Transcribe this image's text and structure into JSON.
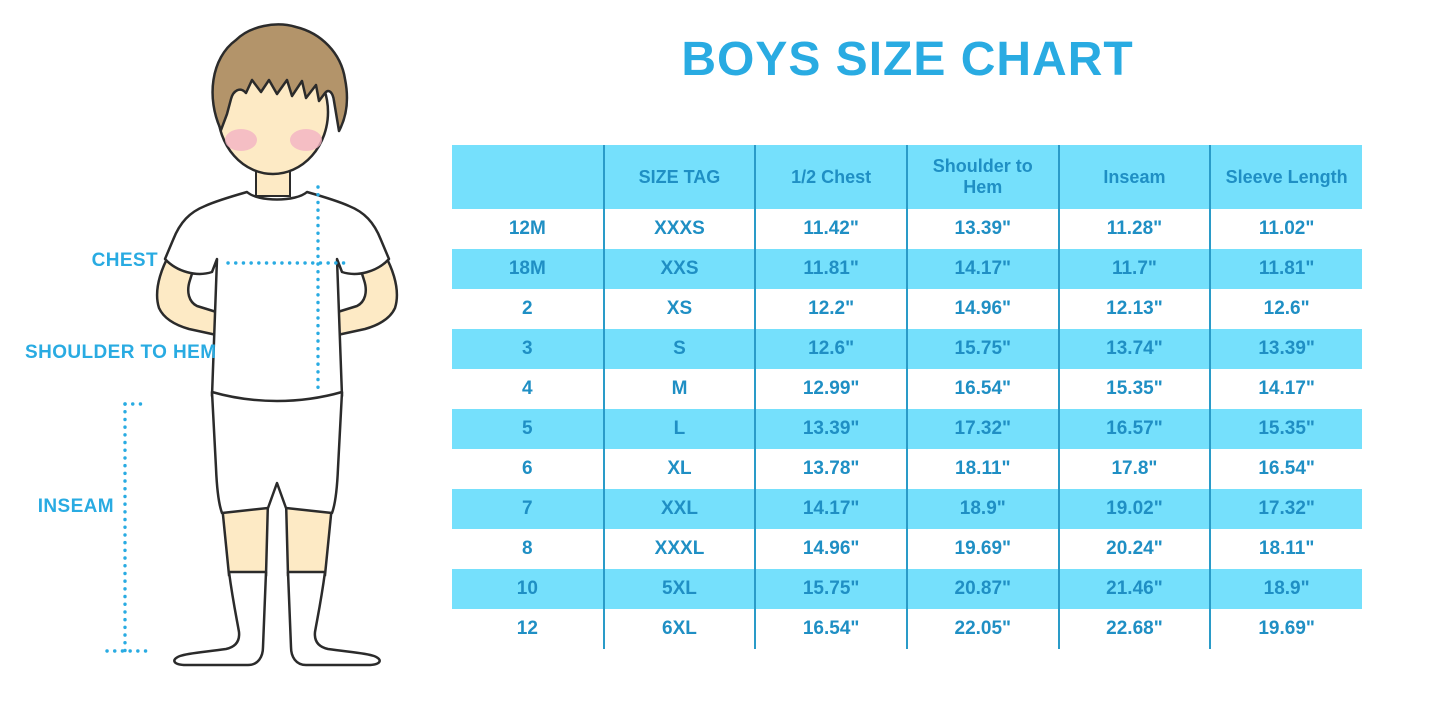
{
  "page": {
    "title": "BOYS SIZE CHART"
  },
  "figure": {
    "chest_label": "CHEST",
    "shoulder_label": "SHOULDER TO HEM",
    "inseam_label": "INSEAM"
  },
  "chart_data": {
    "type": "table",
    "title": "BOYS SIZE CHART",
    "columns": [
      "",
      "SIZE TAG",
      "1/2 Chest",
      "Shoulder to Hem",
      "Inseam",
      "Sleeve Length"
    ],
    "rows": [
      [
        "12M",
        "XXXS",
        "11.42\"",
        "13.39\"",
        "11.28\"",
        "11.02\""
      ],
      [
        "18M",
        "XXS",
        "11.81\"",
        "14.17\"",
        "11.7\"",
        "11.81\""
      ],
      [
        "2",
        "XS",
        "12.2\"",
        "14.96\"",
        "12.13\"",
        "12.6\""
      ],
      [
        "3",
        "S",
        "12.6\"",
        "15.75\"",
        "13.74\"",
        "13.39\""
      ],
      [
        "4",
        "M",
        "12.99\"",
        "16.54\"",
        "15.35\"",
        "14.17\""
      ],
      [
        "5",
        "L",
        "13.39\"",
        "17.32\"",
        "16.57\"",
        "15.35\""
      ],
      [
        "6",
        "XL",
        "13.78\"",
        "18.11\"",
        "17.8\"",
        "16.54\""
      ],
      [
        "7",
        "XXL",
        "14.17\"",
        "18.9\"",
        "19.02\"",
        "17.32\""
      ],
      [
        "8",
        "XXXL",
        "14.96\"",
        "19.69\"",
        "20.24\"",
        "18.11\""
      ],
      [
        "10",
        "5XL",
        "15.75\"",
        "20.87\"",
        "21.46\"",
        "18.9\""
      ],
      [
        "12",
        "6XL",
        "16.54\"",
        "22.05\"",
        "22.68\"",
        "19.69\""
      ]
    ],
    "row_striping": [
      "white",
      "cyan"
    ],
    "grid": "vertical-dividers-only",
    "legend_position": "none"
  },
  "colors": {
    "title_blue": "#29abe2",
    "label_blue": "#29abe2",
    "table_text": "#1f8fc4",
    "row_cyan": "#75e0fc",
    "divider": "#2a9bc8",
    "dotted_line": "#29abe2",
    "skin": "#fdeac5",
    "hair": "#b3946a",
    "blush": "#f3b3c3",
    "outline": "#2b2b2b"
  }
}
